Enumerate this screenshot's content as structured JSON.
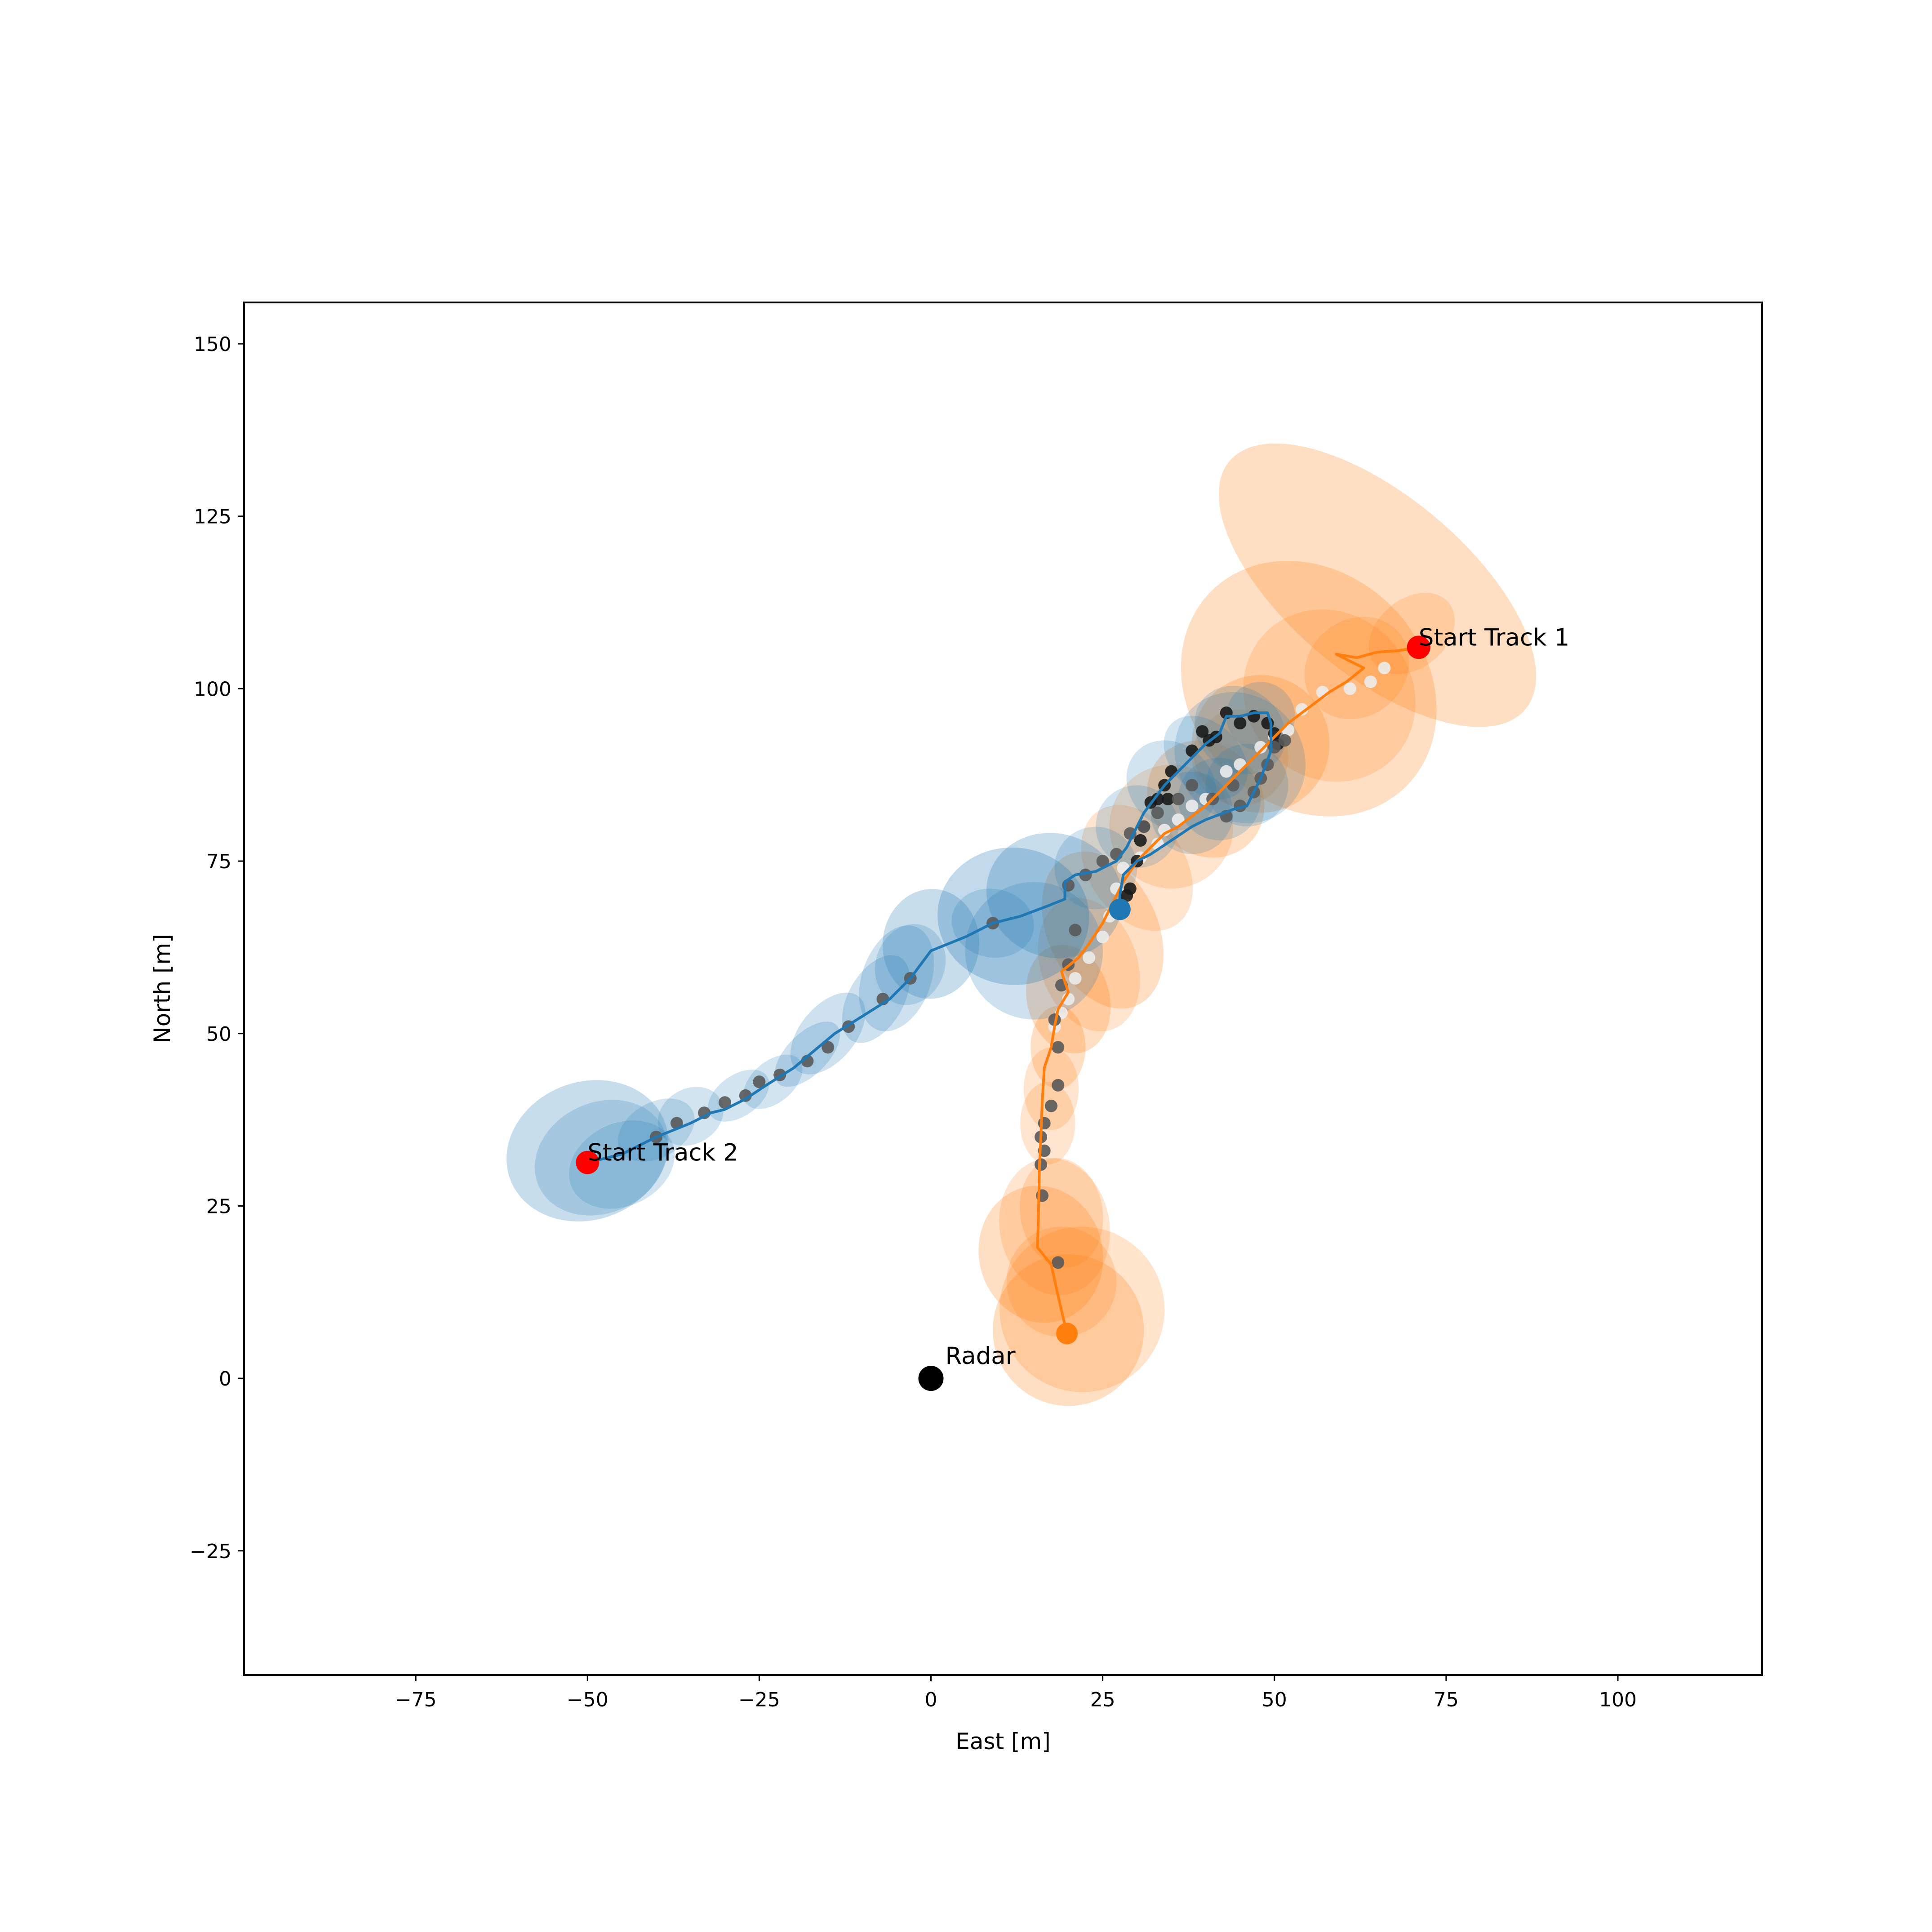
{
  "chart_data": {
    "type": "scatter",
    "title": "",
    "xlabel": "East [m]",
    "ylabel": "North [m]",
    "xlim": [
      -100,
      121
    ],
    "ylim": [
      -43,
      156
    ],
    "xticks": [
      -75,
      -50,
      -25,
      0,
      25,
      50,
      75,
      100
    ],
    "yticks": [
      -25,
      0,
      25,
      50,
      75,
      100,
      125,
      150
    ],
    "grid": false,
    "legend": "none",
    "colors": {
      "track1": "#ff7f0e",
      "track2": "#1f77b4",
      "start_marker": "#ff0000",
      "radar": "#000000",
      "detections_track1": "#ececec",
      "detections_track2": "#1a1a1a",
      "detections_shared": "#595959"
    },
    "radar": {
      "label": "Radar",
      "x": 0,
      "y": 0
    },
    "series": [
      {
        "id": "track1",
        "start_label": "Start Track 1",
        "start": [
          71,
          106
        ],
        "end": [
          19.8,
          6.5
        ],
        "estimates": [
          [
            71,
            106
          ],
          [
            68,
            105.5
          ],
          [
            65,
            105.3
          ],
          [
            62,
            104.5
          ],
          [
            59,
            105
          ],
          [
            63,
            103
          ],
          [
            60.5,
            101
          ],
          [
            58,
            99.5
          ],
          [
            56,
            98
          ],
          [
            54,
            96.5
          ],
          [
            52,
            95
          ],
          [
            50,
            93
          ],
          [
            48,
            91
          ],
          [
            46,
            89
          ],
          [
            44,
            87
          ],
          [
            42,
            85
          ],
          [
            40,
            83
          ],
          [
            38,
            81.5
          ],
          [
            36,
            80
          ],
          [
            34,
            79
          ],
          [
            32,
            77
          ],
          [
            30,
            75
          ],
          [
            28,
            72
          ],
          [
            26.5,
            69
          ],
          [
            25,
            66
          ],
          [
            23,
            63
          ],
          [
            21.5,
            61
          ],
          [
            19,
            59
          ],
          [
            20,
            56
          ],
          [
            18.5,
            53.5
          ],
          [
            18,
            51
          ],
          [
            17.5,
            48
          ],
          [
            16.5,
            45
          ],
          [
            16.2,
            40
          ],
          [
            16,
            35
          ],
          [
            15.8,
            31
          ],
          [
            15.7,
            26
          ],
          [
            15.6,
            22
          ],
          [
            15.5,
            19
          ],
          [
            17.5,
            16.5
          ],
          [
            18.5,
            12
          ],
          [
            19.2,
            9
          ],
          [
            19.8,
            6.5
          ]
        ],
        "covariances": [
          [
            65,
            115,
            13,
            28,
            -50,
            0.25
          ],
          [
            70,
            108,
            7,
            5,
            -40,
            0.2
          ],
          [
            55,
            100,
            17,
            20,
            -45,
            0.25
          ],
          [
            58,
            99,
            12,
            13,
            -45,
            0.2
          ],
          [
            62,
            103,
            8,
            7,
            -40,
            0.2
          ],
          [
            48,
            92,
            10,
            10,
            -45,
            0.25
          ],
          [
            45,
            90,
            7,
            7,
            -45,
            0.2
          ],
          [
            40,
            84,
            8,
            9,
            -45,
            0.25
          ],
          [
            35,
            80,
            9,
            9,
            -45,
            0.2
          ],
          [
            30,
            74,
            7,
            10,
            -35,
            0.2
          ],
          [
            25,
            65,
            8,
            12,
            -25,
            0.25
          ],
          [
            23,
            60,
            7,
            10,
            -20,
            0.2
          ],
          [
            20,
            55,
            6,
            8,
            -15,
            0.25
          ],
          [
            18.5,
            48,
            4,
            6,
            0,
            0.25
          ],
          [
            17.5,
            42,
            4,
            6,
            0,
            0.2
          ],
          [
            17,
            37,
            4,
            6,
            0,
            0.2
          ],
          [
            18,
            22,
            8,
            10,
            -10,
            0.2
          ],
          [
            16,
            18,
            9,
            10,
            -15,
            0.25
          ],
          [
            19,
            24,
            6,
            8,
            -10,
            0.2
          ],
          [
            22,
            10,
            12,
            12,
            -25,
            0.22
          ],
          [
            20,
            7,
            11,
            11,
            -20,
            0.25
          ],
          [
            19,
            14,
            8,
            8,
            -15,
            0.2
          ]
        ]
      },
      {
        "id": "track2",
        "start_label": "Start Track 2",
        "start": [
          -50,
          31.3
        ],
        "end": [
          27.5,
          68
        ],
        "estimates": [
          [
            -50,
            31.3
          ],
          [
            -45,
            32.5
          ],
          [
            -40,
            35
          ],
          [
            -35,
            37
          ],
          [
            -32,
            38.5
          ],
          [
            -30,
            39
          ],
          [
            -27,
            40.5
          ],
          [
            -24,
            42.5
          ],
          [
            -20,
            45
          ],
          [
            -17,
            47.5
          ],
          [
            -14,
            50
          ],
          [
            -10,
            52.5
          ],
          [
            -6,
            55
          ],
          [
            -3,
            58
          ],
          [
            0,
            62
          ],
          [
            5,
            64
          ],
          [
            9,
            66
          ],
          [
            13,
            67
          ],
          [
            17,
            68.5
          ],
          [
            19.5,
            69.5
          ],
          [
            19.5,
            72
          ],
          [
            21,
            73
          ],
          [
            24,
            73.5
          ],
          [
            27,
            75
          ],
          [
            28.5,
            77
          ],
          [
            29.5,
            79
          ],
          [
            30,
            80
          ],
          [
            31,
            82
          ],
          [
            32.5,
            84
          ],
          [
            34,
            86
          ],
          [
            36,
            88
          ],
          [
            38,
            90
          ],
          [
            39,
            91
          ],
          [
            40,
            92
          ],
          [
            42,
            93.5
          ],
          [
            43,
            96
          ],
          [
            45,
            96
          ],
          [
            47,
            96.5
          ],
          [
            49,
            96.5
          ],
          [
            49.5,
            95
          ],
          [
            49.5,
            93
          ],
          [
            49.5,
            91
          ],
          [
            48,
            87
          ],
          [
            46,
            83
          ],
          [
            44,
            82.5
          ],
          [
            40,
            81
          ],
          [
            38,
            80
          ],
          [
            35,
            78
          ],
          [
            32,
            76
          ],
          [
            30,
            75
          ],
          [
            28,
            73
          ],
          [
            27.5,
            70
          ],
          [
            27.5,
            68
          ]
        ],
        "covariances": [
          [
            -50,
            33,
            12,
            10,
            -20,
            0.25
          ],
          [
            -48,
            32,
            10,
            8,
            -25,
            0.2
          ],
          [
            -45,
            31,
            8,
            6,
            -25,
            0.2
          ],
          [
            -40,
            36,
            6,
            4,
            -30,
            0.2
          ],
          [
            -35,
            38,
            5,
            4,
            -30,
            0.2
          ],
          [
            -28,
            41,
            5,
            3,
            -35,
            0.2
          ],
          [
            -23,
            43,
            5,
            3,
            -40,
            0.2
          ],
          [
            -18,
            47,
            6,
            3,
            -45,
            0.22
          ],
          [
            -15,
            50,
            7,
            4,
            -50,
            0.22
          ],
          [
            -8,
            55,
            7,
            4,
            -60,
            0.22
          ],
          [
            -5,
            58,
            8,
            5,
            -70,
            0.22
          ],
          [
            0,
            63,
            8,
            7,
            -85,
            0.25
          ],
          [
            -3,
            60,
            6,
            5,
            -70,
            0.2
          ],
          [
            12,
            67,
            10,
            11,
            -85,
            0.28
          ],
          [
            18,
            70,
            9,
            10,
            -70,
            0.25
          ],
          [
            9,
            66,
            5,
            6,
            -80,
            0.2
          ],
          [
            15,
            62,
            10,
            10,
            -60,
            0.22
          ],
          [
            24,
            74,
            6,
            6,
            -45,
            0.2
          ],
          [
            30,
            80,
            6,
            6,
            -45,
            0.2
          ],
          [
            35,
            86,
            6,
            7,
            -45,
            0.2
          ],
          [
            40,
            90,
            5,
            7,
            -45,
            0.2
          ],
          [
            45,
            94,
            6,
            7,
            -50,
            0.2
          ],
          [
            48,
            96,
            5,
            5,
            -50,
            0.2
          ],
          [
            46,
            86,
            6,
            6,
            -45,
            0.2
          ],
          [
            42,
            84,
            6,
            6,
            -45,
            0.2
          ],
          [
            38,
            82,
            6,
            6,
            -45,
            0.2
          ],
          [
            45,
            90,
            9,
            10,
            -45,
            0.2
          ]
        ]
      }
    ],
    "detections": [
      {
        "group": "track1",
        "points": [
          [
            66,
            103
          ],
          [
            64,
            101
          ],
          [
            61,
            100
          ],
          [
            57,
            99.5
          ],
          [
            54,
            97
          ],
          [
            52,
            94
          ],
          [
            50,
            93
          ],
          [
            48,
            91.5
          ],
          [
            45,
            89
          ],
          [
            43,
            88
          ],
          [
            40,
            84
          ],
          [
            38,
            83
          ],
          [
            36,
            81
          ],
          [
            34,
            79.5
          ],
          [
            33,
            77.5
          ],
          [
            30.5,
            75.5
          ],
          [
            28,
            74
          ],
          [
            27,
            71
          ],
          [
            26,
            67
          ],
          [
            25,
            64
          ],
          [
            23,
            61
          ],
          [
            21,
            58
          ],
          [
            20,
            55
          ],
          [
            19,
            53
          ],
          [
            18,
            51
          ]
        ]
      },
      {
        "group": "track2",
        "points": [
          [
            43,
            96.5
          ],
          [
            45,
            95
          ],
          [
            47,
            96
          ],
          [
            49,
            95
          ],
          [
            50,
            93.5
          ],
          [
            50.5,
            92
          ],
          [
            39.5,
            93.8
          ],
          [
            40.5,
            92.5
          ],
          [
            41.5,
            93
          ],
          [
            38,
            91
          ],
          [
            35,
            88
          ],
          [
            34,
            86
          ],
          [
            33,
            84
          ],
          [
            32,
            83.5
          ],
          [
            31,
            80
          ],
          [
            30.5,
            78
          ],
          [
            30,
            75
          ],
          [
            29,
            71
          ],
          [
            28.5,
            70
          ],
          [
            34.5,
            84
          ]
        ]
      },
      {
        "group": "shared",
        "points": [
          [
            -40,
            35
          ],
          [
            -37,
            37
          ],
          [
            -33,
            38.5
          ],
          [
            -30,
            40
          ],
          [
            -27,
            41
          ],
          [
            -25,
            43
          ],
          [
            -22,
            44
          ],
          [
            -18,
            46
          ],
          [
            -15,
            48
          ],
          [
            -12,
            51
          ],
          [
            -7,
            55
          ],
          [
            -3,
            58
          ],
          [
            9,
            66
          ],
          [
            20,
            71.5
          ],
          [
            22.5,
            73
          ],
          [
            25,
            75
          ],
          [
            27,
            76
          ],
          [
            29,
            79
          ],
          [
            31,
            80
          ],
          [
            33,
            82
          ],
          [
            36,
            84
          ],
          [
            38,
            86
          ],
          [
            41,
            84
          ],
          [
            43,
            81.5
          ],
          [
            45,
            83
          ],
          [
            47,
            85
          ],
          [
            48,
            87
          ],
          [
            49,
            89
          ],
          [
            50,
            91.5
          ],
          [
            51.5,
            92.5
          ],
          [
            44,
            86
          ],
          [
            21,
            65
          ],
          [
            20,
            60
          ],
          [
            19,
            57
          ],
          [
            18,
            52
          ],
          [
            18.5,
            48
          ],
          [
            18.5,
            42.5
          ],
          [
            17.5,
            39.5
          ],
          [
            16.5,
            37
          ],
          [
            16,
            35
          ],
          [
            16.5,
            33
          ],
          [
            16,
            31
          ],
          [
            16.2,
            26.5
          ],
          [
            18.5,
            16.8
          ]
        ]
      }
    ]
  }
}
